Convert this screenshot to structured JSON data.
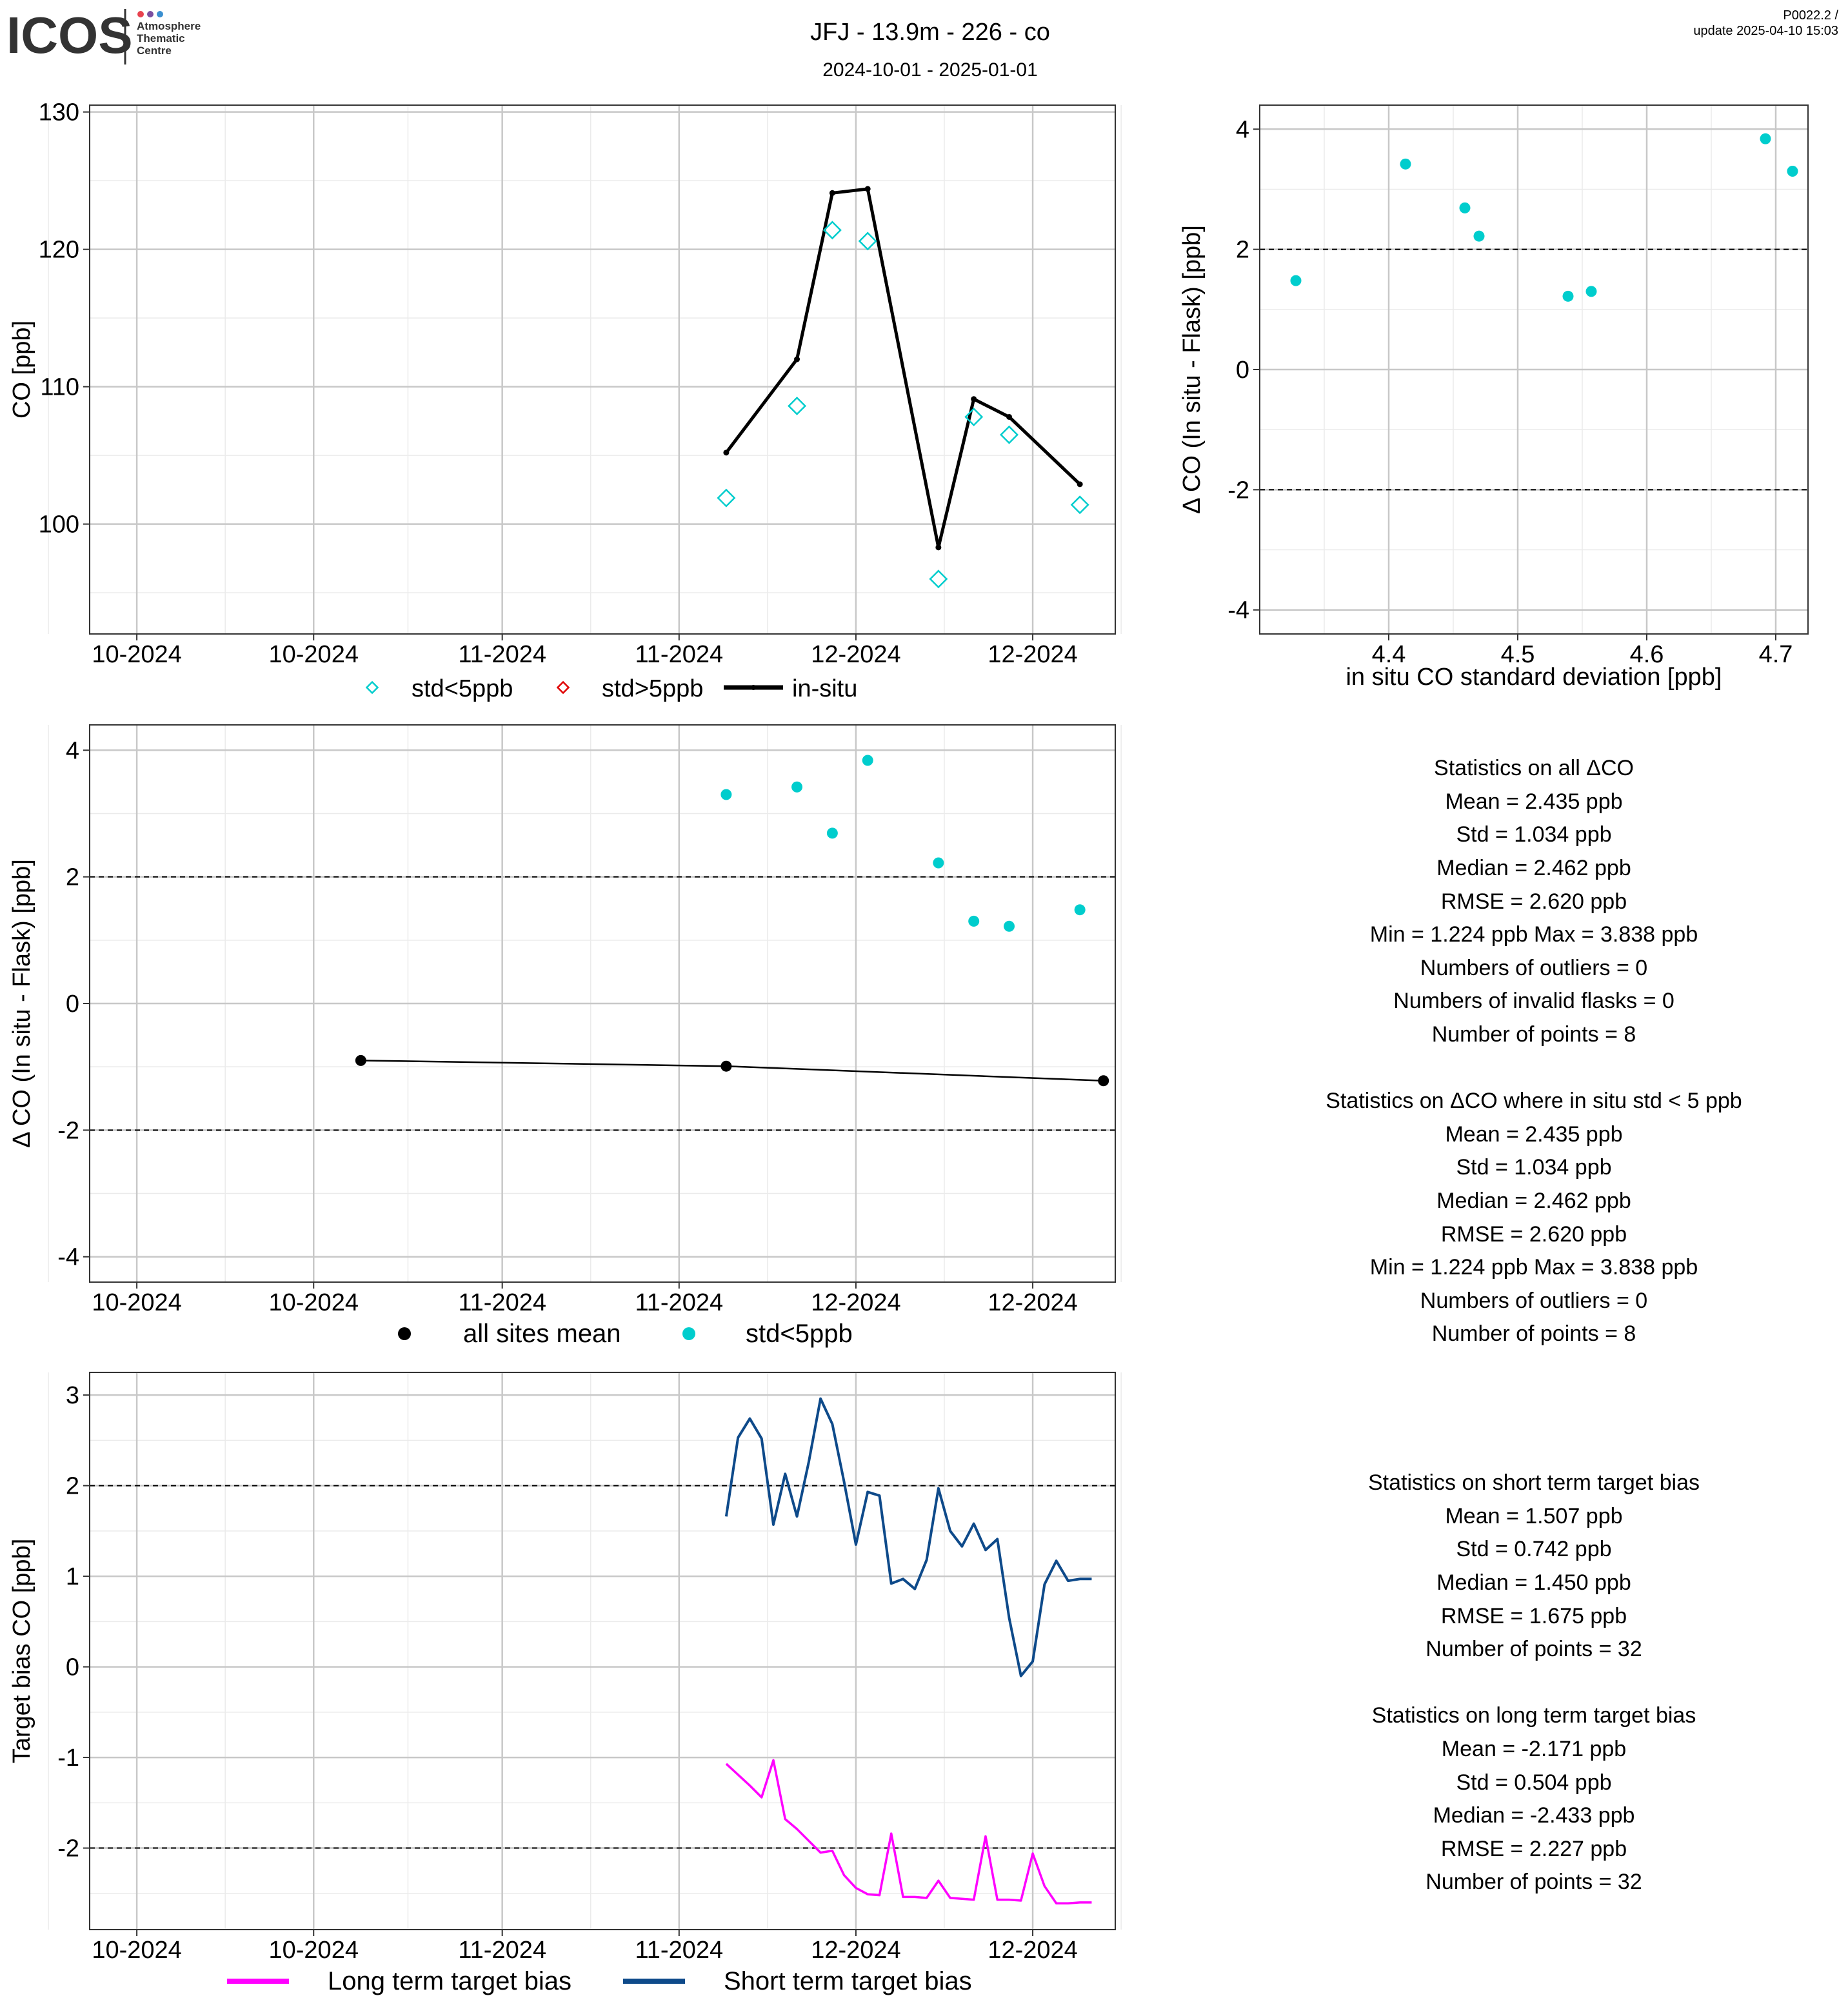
{
  "header": {
    "logo_text": "ICOS",
    "logo_sub": [
      "Atmosphere",
      "Thematic",
      "Centre"
    ],
    "title": "JFJ - 13.9m - 226 - co",
    "subtitle": "2024-10-01 - 2025-01-01",
    "version": "P0022.2 /",
    "update": "update  2025-04-10 15:03"
  },
  "colors": {
    "cyan": "#00CDCD",
    "red": "#E00000",
    "black": "#000000",
    "magenta": "#FF00FF",
    "navy": "#0E4A8A",
    "grid_major": "#C8C8C8",
    "grid_minor": "#EBEBEB"
  },
  "x_tick_labels": [
    "10-2024",
    "10-2024",
    "11-2024",
    "11-2024",
    "12-2024",
    "12-2024"
  ],
  "chart_data": [
    {
      "id": "co_timeseries",
      "type": "line",
      "ylabel": "CO [ppb]",
      "ylim": [
        92,
        130.5
      ],
      "yticks": [
        100,
        110,
        120,
        130
      ],
      "grid": true,
      "legend": [
        "std<5ppb",
        "std>5ppb",
        "in-situ"
      ],
      "legend_position": "bottom",
      "series": [
        {
          "name": "in-situ",
          "x": [
            "2024-11-20",
            "2024-11-26",
            "2024-11-29",
            "2024-12-02",
            "2024-12-08",
            "2024-12-11",
            "2024-12-14",
            "2024-12-20"
          ],
          "values": [
            105.2,
            112.0,
            124.1,
            124.4,
            98.3,
            109.1,
            107.8,
            102.9
          ]
        },
        {
          "name": "std<5ppb",
          "x": [
            "2024-11-20",
            "2024-11-26",
            "2024-11-29",
            "2024-12-02",
            "2024-12-08",
            "2024-12-11",
            "2024-12-14",
            "2024-12-20"
          ],
          "values": [
            101.9,
            108.6,
            121.4,
            120.6,
            96.0,
            107.8,
            106.5,
            101.4
          ]
        },
        {
          "name": "std>5ppb",
          "x": [],
          "values": []
        }
      ]
    },
    {
      "id": "delta_vs_std",
      "type": "scatter",
      "xlabel": "in situ CO standard deviation [ppb]",
      "ylabel": "Δ CO (In situ - Flask) [ppb]",
      "xlim": [
        4.3,
        4.725
      ],
      "xticks": [
        4.4,
        4.5,
        4.6,
        4.7
      ],
      "ylim": [
        -4.4,
        4.4
      ],
      "yticks": [
        -4,
        -2,
        0,
        2,
        4
      ],
      "hlines": [
        -2,
        2
      ],
      "points": [
        {
          "x": 4.328,
          "y": 1.48
        },
        {
          "x": 4.413,
          "y": 3.42
        },
        {
          "x": 4.459,
          "y": 2.69
        },
        {
          "x": 4.47,
          "y": 2.22
        },
        {
          "x": 4.539,
          "y": 1.22
        },
        {
          "x": 4.557,
          "y": 1.3
        },
        {
          "x": 4.692,
          "y": 3.84
        },
        {
          "x": 4.713,
          "y": 3.3
        }
      ]
    },
    {
      "id": "delta_timeseries",
      "type": "scatter",
      "ylabel": "Δ CO (In situ - Flask) [ppb]",
      "ylim": [
        -4.4,
        4.4
      ],
      "yticks": [
        -4,
        -2,
        0,
        2,
        4
      ],
      "hlines": [
        -2,
        2
      ],
      "legend": [
        "all sites mean",
        "std<5ppb"
      ],
      "legend_position": "bottom",
      "series": [
        {
          "name": "all sites mean",
          "x": [
            "2024-10-20",
            "2024-11-20",
            "2024-12-22"
          ],
          "values": [
            -0.9,
            -0.99,
            -1.22
          ]
        },
        {
          "name": "std<5ppb",
          "x": [
            "2024-11-20",
            "2024-11-26",
            "2024-11-29",
            "2024-12-02",
            "2024-12-08",
            "2024-12-11",
            "2024-12-14",
            "2024-12-20"
          ],
          "values": [
            3.3,
            3.42,
            2.69,
            3.84,
            2.22,
            1.3,
            1.22,
            1.48
          ]
        }
      ]
    },
    {
      "id": "target_bias",
      "type": "line",
      "ylabel": "Target bias CO [ppb]",
      "ylim": [
        -2.9,
        3.25
      ],
      "yticks": [
        -2,
        -1,
        0,
        1,
        2,
        3
      ],
      "hlines": [
        -2,
        2
      ],
      "legend": [
        "Long term target bias",
        "Short term target bias"
      ],
      "legend_position": "bottom",
      "x": [
        "2024-11-20",
        "2024-11-21",
        "2024-11-22",
        "2024-11-23",
        "2024-11-24",
        "2024-11-25",
        "2024-11-26",
        "2024-11-27",
        "2024-11-28",
        "2024-11-29",
        "2024-11-30",
        "2024-12-01",
        "2024-12-02",
        "2024-12-03",
        "2024-12-04",
        "2024-12-05",
        "2024-12-06",
        "2024-12-07",
        "2024-12-08",
        "2024-12-09",
        "2024-12-10",
        "2024-12-11",
        "2024-12-12",
        "2024-12-13",
        "2024-12-14",
        "2024-12-15",
        "2024-12-16",
        "2024-12-17",
        "2024-12-18",
        "2024-12-19",
        "2024-12-20",
        "2024-12-21"
      ],
      "series": [
        {
          "name": "Short term target bias",
          "values": [
            1.66,
            2.53,
            2.74,
            2.52,
            1.57,
            2.13,
            1.66,
            2.26,
            2.96,
            2.68,
            2.04,
            1.35,
            1.93,
            1.89,
            0.92,
            0.97,
            0.86,
            1.18,
            1.97,
            1.5,
            1.33,
            1.58,
            1.29,
            1.41,
            0.54,
            -0.1,
            0.06,
            0.91,
            1.17,
            0.95,
            0.97,
            0.97
          ]
        },
        {
          "name": "Long term target bias",
          "values": [
            -1.07,
            -1.19,
            -1.31,
            -1.44,
            -1.03,
            -1.68,
            -1.79,
            -1.92,
            -2.05,
            -2.03,
            -2.3,
            -2.44,
            -2.51,
            -2.52,
            -1.84,
            -2.54,
            -2.54,
            -2.55,
            -2.36,
            -2.55,
            -2.56,
            -2.57,
            -1.87,
            -2.57,
            -2.57,
            -2.58,
            -2.06,
            -2.42,
            -2.61,
            -2.61,
            -2.6,
            -2.6
          ]
        }
      ]
    }
  ],
  "stats": {
    "all": [
      "Statistics on all ΔCO",
      "Mean =  2.435 ppb",
      "Std =  1.034 ppb",
      "Median =  2.462 ppb",
      "RMSE =  2.620 ppb",
      "Min =  1.224 ppb Max =  3.838 ppb",
      "Numbers of outliers =  0",
      "Numbers of invalid flasks =  0",
      "Number of points =  8"
    ],
    "std5": [
      "Statistics on ΔCO where in situ std < 5 ppb",
      "Mean =  2.435 ppb",
      "Std =  1.034 ppb",
      "Median =  2.462 ppb",
      "RMSE =  2.620 ppb",
      "Min =  1.224 ppb Max =  3.838 ppb",
      "Numbers of outliers =  0",
      "Number of points =  8"
    ],
    "short": [
      "Statistics on short term target bias",
      "Mean =  1.507 ppb",
      "Std =  0.742 ppb",
      "Median =  1.450 ppb",
      "RMSE =  1.675 ppb",
      "Number of points =  32"
    ],
    "long": [
      "Statistics on long term target bias",
      "Mean =  -2.171 ppb",
      "Std =  0.504 ppb",
      "Median =  -2.433 ppb",
      "RMSE =  2.227 ppb",
      "Number of points =  32"
    ]
  }
}
